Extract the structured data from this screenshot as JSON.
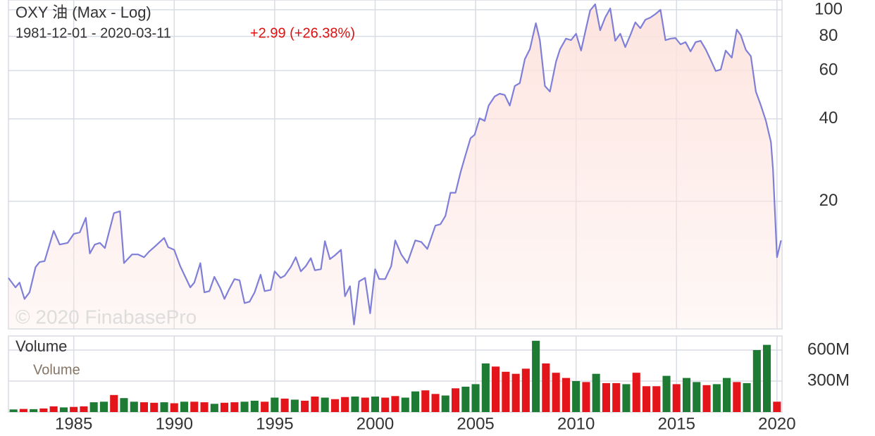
{
  "chart_data": [
    {
      "type": "line",
      "title": "OXY 油 (Max - Log)",
      "subtitle": "1981-12-01 - 2020-03-11",
      "change": "+2.99 (+26.38%)",
      "watermark": "© 2020 FinabasePro",
      "log_scale": true,
      "grid": true,
      "color": "#7f7fd8",
      "fill_color": "#fde3de",
      "x": [
        1981.75,
        1982.1,
        1982.3,
        1982.55,
        1982.8,
        1983.1,
        1983.3,
        1983.55,
        1984.0,
        1984.3,
        1984.7,
        1985.0,
        1985.3,
        1985.6,
        1985.8,
        1986.05,
        1986.3,
        1986.55,
        1987.0,
        1987.3,
        1987.5,
        1987.9,
        1988.2,
        1988.5,
        1988.75,
        1989.0,
        1989.5,
        1989.7,
        1990.0,
        1990.3,
        1990.5,
        1990.8,
        1991.0,
        1991.3,
        1991.5,
        1991.75,
        1992.0,
        1992.3,
        1992.5,
        1992.75,
        1993.0,
        1993.25,
        1993.5,
        1993.75,
        1994.0,
        1994.3,
        1994.5,
        1994.8,
        1995.0,
        1995.3,
        1995.5,
        1995.8,
        1996.05,
        1996.3,
        1996.55,
        1996.8,
        1997.0,
        1997.3,
        1997.5,
        1997.75,
        1998.0,
        1998.3,
        1998.5,
        1998.75,
        1998.95,
        1999.2,
        1999.5,
        1999.75,
        2000.0,
        2000.2,
        2000.5,
        2000.8,
        2001.0,
        2001.3,
        2001.6,
        2002.0,
        2002.3,
        2002.6,
        2003.0,
        2003.25,
        2003.5,
        2003.75,
        2004.0,
        2004.25,
        2004.5,
        2004.75,
        2004.95,
        2005.2,
        2005.45,
        2005.65,
        2005.95,
        2006.2,
        2006.45,
        2006.7,
        2006.95,
        2007.2,
        2007.45,
        2007.7,
        2008.0,
        2008.2,
        2008.45,
        2008.7,
        2009.0,
        2009.2,
        2009.5,
        2009.75,
        2010.0,
        2010.25,
        2010.5,
        2010.7,
        2010.95,
        2011.2,
        2011.45,
        2011.7,
        2011.95,
        2012.2,
        2012.45,
        2012.7,
        2012.95,
        2013.2,
        2013.45,
        2013.7,
        2013.95,
        2014.2,
        2014.45,
        2014.7,
        2014.95,
        2015.2,
        2015.45,
        2015.7,
        2015.95,
        2016.2,
        2016.45,
        2016.7,
        2016.95,
        2017.2,
        2017.45,
        2017.75,
        2018.0,
        2018.2,
        2018.45,
        2018.7,
        2018.95,
        2019.2,
        2019.45,
        2019.7,
        2019.8,
        2020.0,
        2020.2
      ],
      "values": [
        10.5,
        9.7,
        10.1,
        8.8,
        9.3,
        11.5,
        12.0,
        12.1,
        15.6,
        13.9,
        14.1,
        15.2,
        15.4,
        17.4,
        12.9,
        13.9,
        14.1,
        13.5,
        18.1,
        18.4,
        11.9,
        12.8,
        12.8,
        12.5,
        13.1,
        13.6,
        14.7,
        13.6,
        13.3,
        11.6,
        10.8,
        9.7,
        10.1,
        11.9,
        9.3,
        9.4,
        10.6,
        9.6,
        8.8,
        9.6,
        10.4,
        10.3,
        8.5,
        8.6,
        9.3,
        10.8,
        9.4,
        9.5,
        11.1,
        10.5,
        10.7,
        11.5,
        12.5,
        11.1,
        11.6,
        12.4,
        11.2,
        11.3,
        14.3,
        12.3,
        12.7,
        13.3,
        9.0,
        9.8,
        7.1,
        10.2,
        10.5,
        7.8,
        11.3,
        10.4,
        10.4,
        11.6,
        14.4,
        12.8,
        11.9,
        14.4,
        14.2,
        13.4,
        16.3,
        16.5,
        17.7,
        21.5,
        21.5,
        25.5,
        29.5,
        34.0,
        35.0,
        40.2,
        39.3,
        44.7,
        48.3,
        49.4,
        48.9,
        44.7,
        52.7,
        54.0,
        66.1,
        71.8,
        89.4,
        77.5,
        52.7,
        50.3,
        64.6,
        71.8,
        78.5,
        77.5,
        81.8,
        71.0,
        85.7,
        99.4,
        104.8,
        84.2,
        93.7,
        101.2,
        77.1,
        81.8,
        73.1,
        80.8,
        90.0,
        85.7,
        92.0,
        93.7,
        96.5,
        100,
        77.5,
        78.5,
        78.9,
        74.8,
        76.2,
        70.5,
        76.2,
        77.1,
        71.8,
        65.6,
        59.8,
        60.5,
        71.0,
        66.9,
        84.7,
        80.8,
        71.4,
        67.7,
        50.3,
        44.7,
        39.3,
        32.9,
        26.2,
        12.5,
        14.4
      ],
      "xlim": [
        1981.75,
        2020.25
      ],
      "xticks": [
        1985,
        1990,
        1995,
        2000,
        2005,
        2010,
        2015,
        2020
      ],
      "ylim": [
        6.84,
        108.6
      ],
      "yticks": [
        20,
        40,
        60,
        80,
        100
      ]
    },
    {
      "type": "bar",
      "title": "Volume",
      "grid": true,
      "x": [
        1982,
        1982.5,
        1983,
        1983.5,
        1984,
        1984.5,
        1985,
        1985.5,
        1986,
        1986.5,
        1987,
        1987.5,
        1988,
        1988.5,
        1989,
        1989.5,
        1990,
        1990.5,
        1991,
        1991.5,
        1992,
        1992.5,
        1993,
        1993.5,
        1994,
        1994.5,
        1995,
        1995.5,
        1996,
        1996.5,
        1997,
        1997.5,
        1998,
        1998.5,
        1999,
        1999.5,
        2000,
        2000.5,
        2001,
        2001.5,
        2002,
        2002.5,
        2003,
        2003.5,
        2004,
        2004.5,
        2005,
        2005.5,
        2006,
        2006.5,
        2007,
        2007.5,
        2008,
        2008.5,
        2009,
        2009.5,
        2010,
        2010.5,
        2011,
        2011.5,
        2012,
        2012.5,
        2013,
        2013.5,
        2014,
        2014.5,
        2015,
        2015.5,
        2016,
        2016.5,
        2017,
        2017.5,
        2018,
        2018.5,
        2019,
        2019.5,
        2020
      ],
      "series": [
        {
          "name": "Volume",
          "values": [
            25000000,
            30000000,
            28000000,
            35000000,
            55000000,
            45000000,
            50000000,
            55000000,
            95000000,
            100000000,
            165000000,
            135000000,
            100000000,
            95000000,
            90000000,
            95000000,
            85000000,
            100000000,
            100000000,
            95000000,
            80000000,
            90000000,
            95000000,
            100000000,
            110000000,
            100000000,
            140000000,
            130000000,
            120000000,
            110000000,
            150000000,
            140000000,
            125000000,
            145000000,
            150000000,
            140000000,
            150000000,
            140000000,
            155000000,
            140000000,
            200000000,
            210000000,
            175000000,
            160000000,
            230000000,
            245000000,
            270000000,
            470000000,
            440000000,
            390000000,
            370000000,
            420000000,
            690000000,
            470000000,
            380000000,
            330000000,
            300000000,
            290000000,
            370000000,
            280000000,
            280000000,
            270000000,
            380000000,
            250000000,
            250000000,
            350000000,
            270000000,
            330000000,
            290000000,
            260000000,
            270000000,
            330000000,
            290000000,
            280000000,
            600000000,
            650000000,
            100000000
          ],
          "colors": [
            "#1d7b33",
            "#e3151a",
            "#1d7b33",
            "#e3151a",
            "#e3151a",
            "#1d7b33",
            "#e3151a",
            "#e3151a",
            "#1d7b33",
            "#1d7b33",
            "#e3151a",
            "#1d7b33",
            "#1d7b33",
            "#e3151a",
            "#e3151a",
            "#1d7b33",
            "#e3151a",
            "#1d7b33",
            "#e3151a",
            "#e3151a",
            "#1d7b33",
            "#e3151a",
            "#e3151a",
            "#1d7b33",
            "#1d7b33",
            "#e3151a",
            "#1d7b33",
            "#e3151a",
            "#1d7b33",
            "#e3151a",
            "#e3151a",
            "#1d7b33",
            "#e3151a",
            "#e3151a",
            "#1d7b33",
            "#e3151a",
            "#1d7b33",
            "#e3151a",
            "#e3151a",
            "#1d7b33",
            "#1d7b33",
            "#e3151a",
            "#e3151a",
            "#1d7b33",
            "#e3151a",
            "#1d7b33",
            "#1d7b33",
            "#1d7b33",
            "#e3151a",
            "#e3151a",
            "#e3151a",
            "#e3151a",
            "#1d7b33",
            "#e3151a",
            "#e3151a",
            "#e3151a",
            "#1d7b33",
            "#e3151a",
            "#1d7b33",
            "#e3151a",
            "#e3151a",
            "#1d7b33",
            "#e3151a",
            "#e3151a",
            "#e3151a",
            "#1d7b33",
            "#e3151a",
            "#1d7b33",
            "#1d7b33",
            "#e3151a",
            "#1d7b33",
            "#1d7b33",
            "#e3151a",
            "#1d7b33",
            "#1d7b33",
            "#1d7b33",
            "#e3151a"
          ]
        }
      ],
      "xlim": [
        1981.75,
        2020.25
      ],
      "xticks": [
        1985,
        1990,
        1995,
        2000,
        2005,
        2010,
        2015,
        2020
      ],
      "ylim": [
        0,
        736000000
      ],
      "yticks": [
        {
          "value": 300000000,
          "label": "300M"
        },
        {
          "value": 600000000,
          "label": "600M"
        }
      ]
    }
  ]
}
